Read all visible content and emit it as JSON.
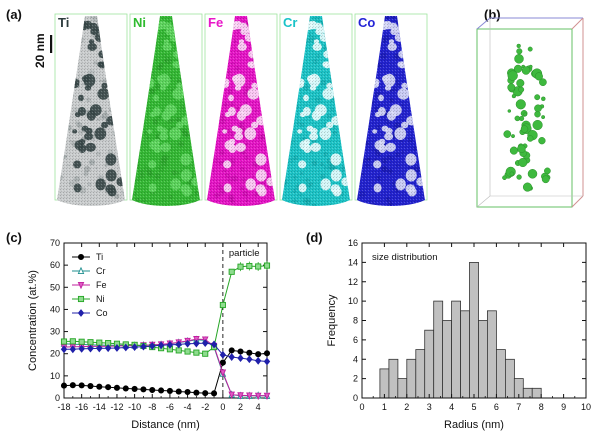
{
  "figure": {
    "panel_labels": [
      "(a)",
      "(b)",
      "(c)",
      "(d)"
    ],
    "scale_bar": "20 nm",
    "element_maps": [
      {
        "label": "Ti",
        "color": "#2e3d3e",
        "base": "#c9cccd",
        "spot": "#39494a",
        "bg_spot": "#8d9697"
      },
      {
        "label": "Ni",
        "color": "#2fbb2f",
        "base": "#35b935",
        "spot": "#5fd65f",
        "bg_spot": "#2a9e2a"
      },
      {
        "label": "Fe",
        "color": "#e817c8",
        "base": "#e515c6",
        "spot": "#fbd6f5",
        "bg_spot": "#c00aa5"
      },
      {
        "label": "Cr",
        "color": "#19c3c8",
        "base": "#1dc4c7",
        "spot": "#e4fbfc",
        "bg_spot": "#13a6aa"
      },
      {
        "label": "Co",
        "color": "#2424d6",
        "base": "#2323cf",
        "spot": "#d8daf7",
        "bg_spot": "#1818a8"
      }
    ],
    "isosurface_color": "#3eb93e"
  },
  "chart_data": [
    {
      "type": "line",
      "panel": "(c)",
      "xlabel": "Distance (nm)",
      "ylabel": "Concentration (at.%)",
      "xlim": [
        -18,
        5
      ],
      "ylim": [
        0,
        70
      ],
      "xticks": [
        -18,
        -16,
        -14,
        -12,
        -10,
        -8,
        -6,
        -4,
        -2,
        0,
        2,
        4
      ],
      "yticks": [
        0,
        10,
        20,
        30,
        40,
        50,
        60,
        70
      ],
      "annotation": "particle",
      "interface_x": 0,
      "legend_position": "upper-left",
      "x": [
        -18,
        -17,
        -16,
        -15,
        -14,
        -13,
        -12,
        -11,
        -10,
        -9,
        -8,
        -7,
        -6,
        -5,
        -4,
        -3,
        -2,
        -1,
        0,
        1,
        2,
        3,
        4,
        5
      ],
      "series": [
        {
          "name": "Ti",
          "color": "#000000",
          "marker": "circle",
          "values": [
            5.6,
            5.8,
            5.7,
            5.4,
            5.1,
            4.9,
            4.6,
            4.3,
            4.1,
            3.9,
            3.6,
            3.4,
            3.2,
            2.9,
            2.7,
            2.4,
            2.2,
            2.1,
            16.0,
            21.5,
            21.0,
            20.4,
            19.8,
            20.2
          ]
        },
        {
          "name": "Cr",
          "color": "#1f8f8f",
          "marker": "triangle-up",
          "values": [
            24.5,
            24.3,
            24.2,
            24.0,
            23.9,
            23.8,
            23.8,
            23.7,
            23.7,
            23.8,
            23.9,
            24.1,
            24.5,
            25.0,
            25.6,
            26.3,
            26.0,
            23.0,
            11.0,
            1.5,
            1.0,
            1.0,
            1.1,
            1.0
          ]
        },
        {
          "name": "Fe",
          "color": "#c0209f",
          "marker": "triangle-down",
          "values": [
            23.0,
            23.1,
            23.2,
            23.3,
            23.3,
            23.4,
            23.5,
            23.6,
            23.7,
            23.8,
            24.0,
            24.2,
            24.6,
            25.1,
            25.8,
            26.6,
            26.4,
            23.5,
            11.5,
            1.5,
            1.2,
            1.1,
            1.0,
            1.0
          ]
        },
        {
          "name": "Ni",
          "color": "#25a525",
          "marker": "square",
          "values": [
            25.5,
            25.6,
            25.4,
            25.2,
            25.0,
            24.8,
            24.5,
            24.2,
            24.0,
            23.5,
            23.0,
            22.5,
            22.0,
            21.5,
            21.0,
            20.5,
            20.0,
            23.0,
            42.0,
            57.0,
            59.3,
            59.6,
            59.4,
            59.8
          ]
        },
        {
          "name": "Co",
          "color": "#2020aa",
          "marker": "diamond",
          "values": [
            22.0,
            22.0,
            22.2,
            22.3,
            22.4,
            22.5,
            22.6,
            22.8,
            23.0,
            23.2,
            23.5,
            23.8,
            24.0,
            24.2,
            24.5,
            24.6,
            24.8,
            24.2,
            19.5,
            18.5,
            18.0,
            17.5,
            16.8,
            16.5
          ]
        }
      ]
    },
    {
      "type": "bar",
      "panel": "(d)",
      "title": "size distribution",
      "xlabel": "Radius (nm)",
      "ylabel": "Frequency",
      "xlim": [
        0,
        10
      ],
      "ylim": [
        0,
        16
      ],
      "xticks": [
        0,
        1,
        2,
        3,
        4,
        5,
        6,
        7,
        8,
        9,
        10
      ],
      "yticks": [
        0,
        2,
        4,
        6,
        8,
        10,
        12,
        14,
        16
      ],
      "bin_width": 0.4,
      "bin_starts": [
        0.8,
        1.2,
        1.6,
        2.0,
        2.4,
        2.8,
        3.2,
        3.6,
        4.0,
        4.4,
        4.8,
        5.2,
        5.6,
        6.0,
        6.4,
        6.8,
        7.2,
        7.6
      ],
      "values": [
        3,
        4,
        2,
        4,
        5,
        7,
        10,
        8,
        10,
        9,
        14,
        8,
        9,
        5,
        4,
        2,
        1,
        1
      ],
      "bar_color": "#c0c0c0"
    }
  ]
}
